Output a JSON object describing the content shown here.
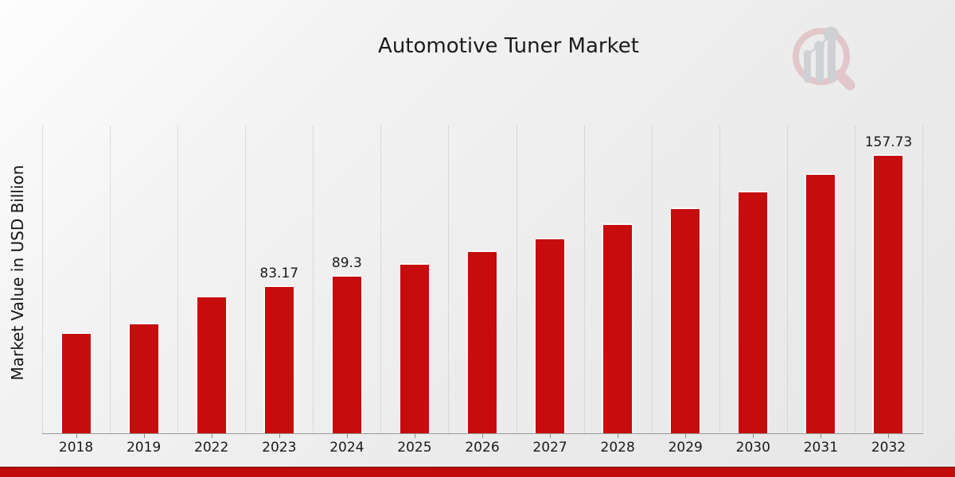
{
  "chart_data": {
    "type": "bar",
    "title": "Automotive Tuner Market",
    "xlabel": "",
    "ylabel": "Market Value in USD Billion",
    "categories": [
      "2018",
      "2019",
      "2022",
      "2023",
      "2024",
      "2025",
      "2026",
      "2027",
      "2028",
      "2029",
      "2030",
      "2031",
      "2032"
    ],
    "values": [
      56.7,
      62.1,
      77.5,
      83.17,
      89.3,
      95.9,
      103.0,
      110.5,
      118.7,
      127.4,
      136.8,
      146.9,
      157.73
    ],
    "data_labels": {
      "2023": "83.17",
      "2024": "89.3",
      "2032": "157.73"
    },
    "ylim": [
      0,
      175
    ],
    "grid": "vertical-dotted-at-category-boundaries",
    "legend": "none",
    "bar_color": "#c60c0c",
    "background": "light-gray-gradient"
  },
  "colors": {
    "bar": "#c60c0c",
    "accent_strip": "#c20b0b",
    "accent_strip_border": "#921212",
    "axis": "#999999",
    "gridline": "#c3c3c3",
    "text": "#1a1a1a",
    "logo_pink": "#daa3a8",
    "logo_gray": "#b3b7bd"
  },
  "watermark": {
    "icon": "magnifier-bar-chart-logo"
  }
}
